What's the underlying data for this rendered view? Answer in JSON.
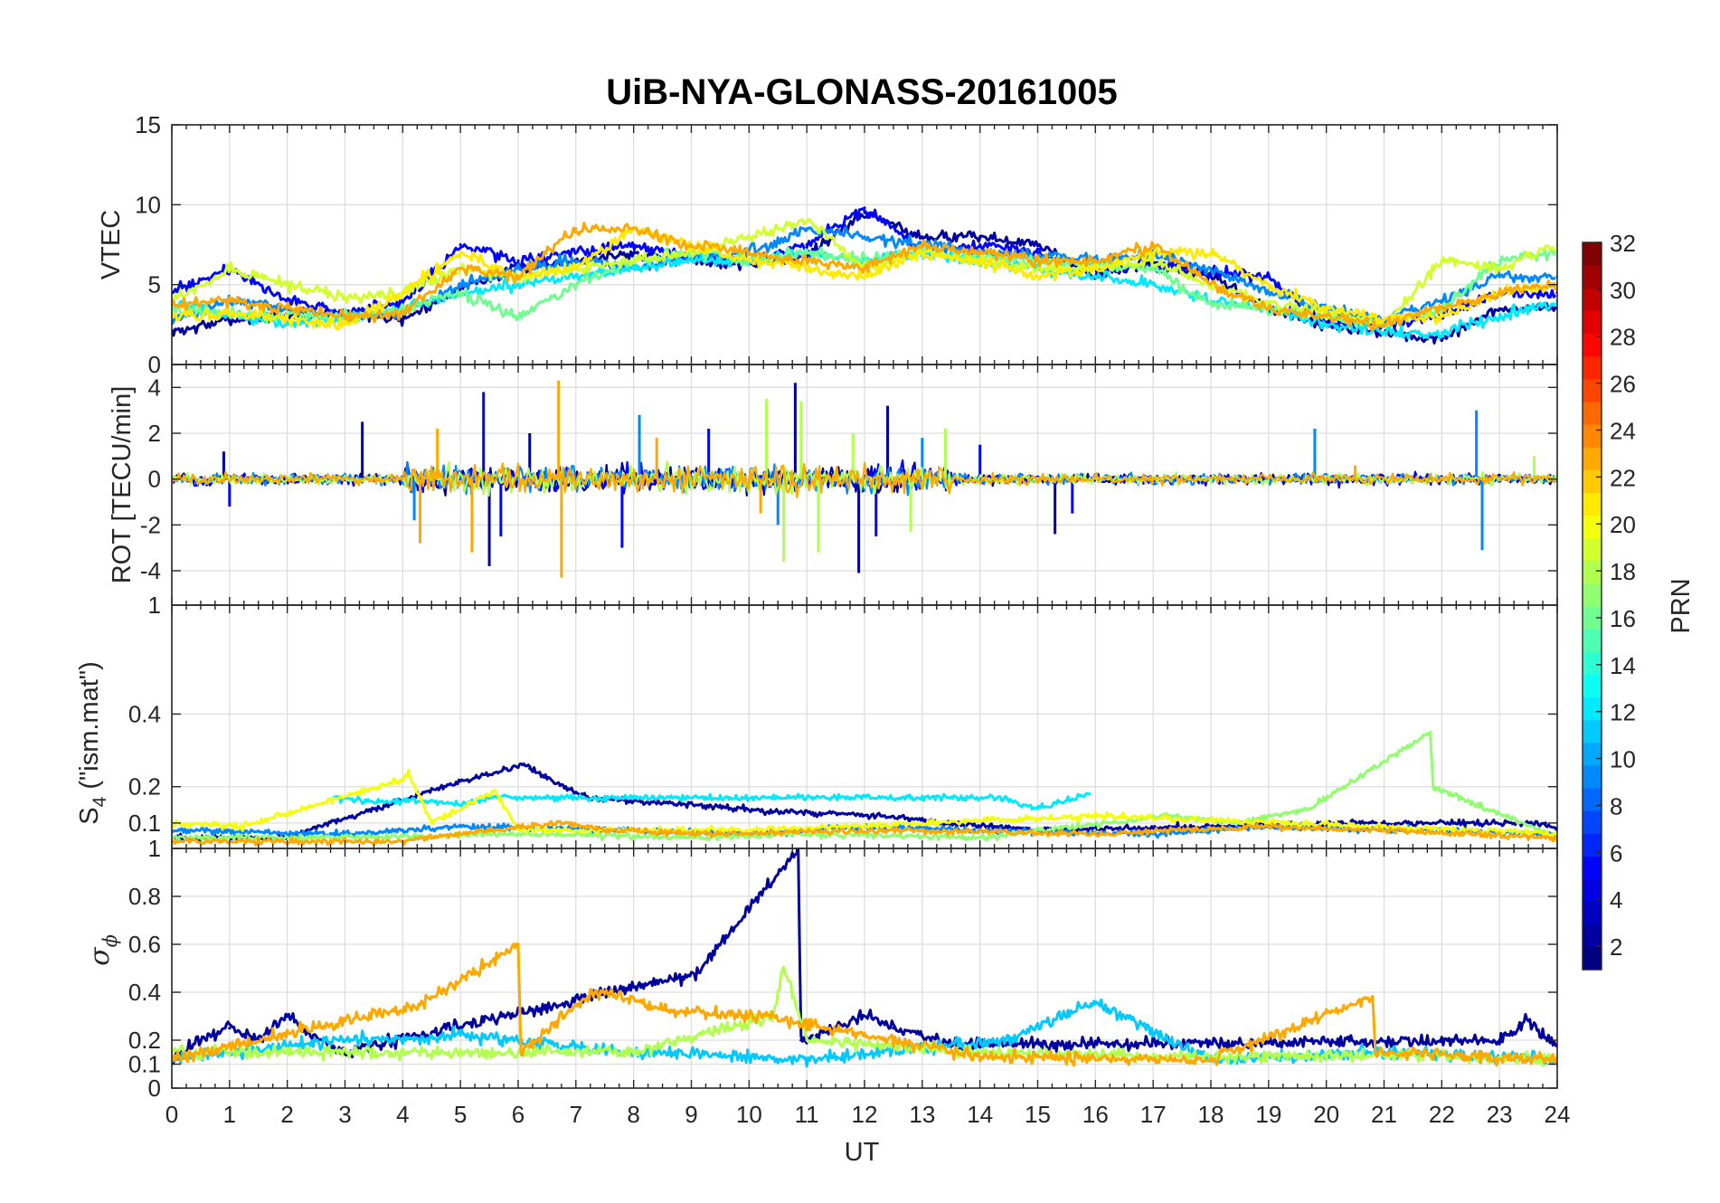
{
  "title": "UiB-NYA-GLONASS-20161005",
  "x_axis": {
    "label": "UT",
    "range": [
      0,
      24
    ],
    "ticks": [
      "0",
      "1",
      "2",
      "3",
      "4",
      "5",
      "6",
      "7",
      "8",
      "9",
      "10",
      "11",
      "12",
      "13",
      "14",
      "15",
      "16",
      "17",
      "18",
      "19",
      "20",
      "21",
      "22",
      "23",
      "24"
    ]
  },
  "colorbar": {
    "label": "PRN",
    "colormap": "jet",
    "range": [
      1,
      32
    ],
    "ticks": [
      "2",
      "4",
      "6",
      "8",
      "10",
      "12",
      "14",
      "16",
      "18",
      "20",
      "22",
      "24",
      "26",
      "28",
      "30",
      "32"
    ]
  },
  "panels": {
    "vtec": {
      "ylabel": "VTEC",
      "ticks": [
        "0",
        "5",
        "10",
        "15"
      ]
    },
    "rot": {
      "ylabel": "ROT [TECU/min]",
      "ticks": [
        "-4",
        "-2",
        "0",
        "2",
        "4"
      ]
    },
    "s4": {
      "ylabel_main": "S",
      "ylabel_sub": "4",
      "ylabel_rest": " (\"ism.mat\")",
      "ticks": [
        "0.1",
        "0.2",
        "0.4"
      ],
      "top_tick": "1"
    },
    "sigma": {
      "ylabel_main": "σ",
      "ylabel_sub": "ϕ",
      "ticks": [
        "0",
        "0.1",
        "0.2",
        "0.4",
        "0.6",
        "0.8",
        "1"
      ]
    }
  },
  "chart_data": [
    {
      "type": "line",
      "panel": "vtec",
      "ylabel": "VTEC",
      "xlim": [
        0,
        24
      ],
      "ylim": [
        0,
        15
      ],
      "grid": true,
      "series": [
        {
          "prn": 2,
          "x": [
            0,
            1,
            2,
            3,
            4,
            5,
            6,
            7,
            8,
            9,
            10,
            11,
            12,
            13,
            14,
            15,
            16,
            17,
            18,
            19,
            20,
            21,
            22,
            23,
            24
          ],
          "y": [
            2,
            2.8,
            3,
            3.3,
            2.8,
            4.8,
            6,
            6.5,
            7,
            6.5,
            6.3,
            6.8,
            9.5,
            8,
            8,
            7.5,
            5.5,
            6.5,
            5.5,
            3.5,
            2.5,
            2,
            1.5,
            3.5,
            3.5
          ]
        },
        {
          "prn": 5,
          "x": [
            0,
            1,
            2,
            3,
            4,
            5,
            6,
            7,
            8,
            9,
            10,
            11,
            12,
            13,
            14,
            15,
            16,
            17,
            18,
            19,
            20,
            21,
            22,
            23,
            24
          ],
          "y": [
            4.5,
            6,
            4,
            3.2,
            3.8,
            7.5,
            6.5,
            7,
            7.5,
            6.8,
            6.5,
            7.5,
            9.8,
            7,
            7.5,
            7,
            6,
            6.2,
            5.8,
            5.5,
            2.5,
            2.5,
            3,
            4.5,
            4.5
          ]
        },
        {
          "prn": 9,
          "x": [
            0,
            1,
            2,
            3,
            4,
            5,
            6,
            7,
            8,
            9,
            10,
            11,
            12,
            13,
            14,
            15,
            16,
            17,
            18,
            19,
            20,
            21,
            22,
            23,
            24
          ],
          "y": [
            2.8,
            4,
            3.5,
            3,
            3.2,
            5,
            6,
            6.5,
            6,
            6.8,
            7,
            8.5,
            8,
            7.5,
            7,
            6.8,
            6.5,
            6.8,
            6,
            4.5,
            3.5,
            2.8,
            4,
            5.5,
            5.5
          ]
        },
        {
          "prn": 12,
          "x": [
            0,
            1,
            2,
            3,
            4,
            5,
            6,
            7,
            8,
            9,
            10,
            11,
            12,
            13,
            14,
            15,
            16,
            17,
            18,
            19,
            20,
            21,
            22,
            23,
            24
          ],
          "y": [
            4,
            3,
            2.5,
            3,
            3.5,
            4.5,
            5,
            5.5,
            6,
            6.5,
            6.5,
            7,
            6.5,
            7,
            6.5,
            6,
            5.5,
            5,
            4,
            3.5,
            2.5,
            2,
            2,
            3,
            4
          ]
        },
        {
          "prn": 16,
          "x": [
            0,
            1,
            2,
            3,
            4,
            5,
            6,
            7,
            8,
            9,
            10,
            11,
            12,
            13,
            14,
            15,
            16,
            17,
            18,
            19,
            20,
            21,
            22,
            23,
            24
          ],
          "y": [
            3.5,
            3.2,
            3,
            3,
            3.5,
            4.5,
            3,
            5,
            6.5,
            7,
            6.5,
            7,
            6.5,
            7,
            6.8,
            6.5,
            6.2,
            6,
            3.8,
            3.5,
            3,
            2.5,
            3.5,
            6.5,
            7
          ]
        },
        {
          "prn": 19,
          "x": [
            0,
            1,
            2,
            3,
            4,
            5,
            6,
            7,
            8,
            9,
            10,
            11,
            12,
            13,
            14,
            15,
            16,
            17,
            18,
            19,
            20,
            21,
            22,
            23,
            24
          ],
          "y": [
            4,
            6,
            5,
            4.2,
            4.5,
            6,
            5.5,
            6,
            6.5,
            7,
            8,
            9,
            6,
            7,
            6.5,
            6,
            6,
            6.5,
            5,
            3.8,
            3.2,
            2.5,
            6.5,
            6,
            7.5
          ]
        },
        {
          "prn": 21,
          "x": [
            0,
            1,
            2,
            3,
            4,
            5,
            6,
            7,
            8,
            9,
            10,
            11,
            12,
            13,
            14,
            15,
            16,
            17,
            18,
            19,
            20,
            21,
            22,
            23,
            24
          ],
          "y": [
            3,
            3.2,
            2.8,
            2.5,
            4.5,
            7,
            5.5,
            6,
            8.5,
            7.5,
            6.5,
            6,
            5.5,
            7,
            6.5,
            5.5,
            6,
            7,
            7,
            5,
            3.5,
            2.8,
            3,
            4.5,
            5
          ]
        },
        {
          "prn": 23,
          "x": [
            0,
            1,
            2,
            3,
            4,
            5,
            6,
            7,
            8,
            9,
            10,
            11,
            12,
            13,
            14,
            15,
            16,
            17,
            18,
            19,
            20,
            21,
            22,
            23,
            24
          ],
          "y": [
            3.8,
            4,
            3.5,
            3,
            3.2,
            6,
            5.5,
            8.5,
            8.5,
            7.5,
            7,
            6.5,
            6,
            7.5,
            7,
            6.5,
            6.5,
            7.5,
            5,
            3.5,
            3,
            2.5,
            3.5,
            4.5,
            5
          ]
        }
      ]
    },
    {
      "type": "line",
      "panel": "rot",
      "ylabel": "ROT [TECU/min]",
      "xlim": [
        0,
        24
      ],
      "ylim": [
        -5.5,
        5
      ],
      "grid": true,
      "series": [
        {
          "prn": 2,
          "x": [
            0.9,
            3.3,
            5.5,
            6.2,
            10.8,
            11.9,
            12.4,
            15.3
          ],
          "y": [
            1.2,
            2.5,
            -3.8,
            2.0,
            4.2,
            -4.1,
            3.2,
            -2.4
          ]
        },
        {
          "prn": 5,
          "x": [
            1.0,
            5.4,
            5.7,
            7.8,
            9.3,
            12.2,
            14.0,
            15.6
          ],
          "y": [
            -1.2,
            3.8,
            -2.5,
            -3.0,
            2.2,
            -2.5,
            1.5,
            -1.5
          ]
        },
        {
          "prn": 9,
          "x": [
            4.2,
            8.1,
            10.5,
            13.0,
            19.8,
            22.6,
            22.7
          ],
          "y": [
            -1.8,
            2.8,
            -2.0,
            1.8,
            2.2,
            3.0,
            -3.1
          ]
        },
        {
          "prn": 18,
          "x": [
            10.3,
            10.6,
            10.9,
            11.2,
            11.8,
            12.8,
            13.4,
            23.6
          ],
          "y": [
            3.5,
            -3.6,
            3.4,
            -3.2,
            2.0,
            -2.3,
            2.2,
            1.0
          ]
        },
        {
          "prn": 23,
          "x": [
            4.3,
            4.6,
            5.2,
            6.7,
            6.75,
            8.4,
            10.2,
            20.5
          ],
          "y": [
            -2.8,
            2.2,
            -3.2,
            4.3,
            -4.3,
            1.8,
            -1.5,
            0.6
          ]
        }
      ]
    },
    {
      "type": "line",
      "panel": "s4",
      "ylabel": "S4 (\"ism.mat\")",
      "xlim": [
        0,
        24
      ],
      "ylim": [
        0.03,
        0.7
      ],
      "grid": true,
      "series": [
        {
          "prn": 2,
          "x": [
            0,
            2,
            4.7,
            6.1,
            6.2,
            7.2,
            10.7,
            12.3,
            13.3,
            15.1,
            20.6,
            23.8,
            24
          ],
          "y": [
            0.06,
            0.06,
            0.2,
            0.26,
            0.25,
            0.17,
            0.13,
            0.12,
            0.1,
            0.08,
            0.1,
            0.1,
            0.08
          ]
        },
        {
          "prn": 9,
          "x": [
            0,
            3,
            5,
            8,
            10,
            12,
            14,
            17,
            19,
            21,
            22,
            24
          ],
          "y": [
            0.08,
            0.07,
            0.09,
            0.08,
            0.07,
            0.09,
            0.08,
            0.07,
            0.09,
            0.08,
            0.08,
            0.07
          ]
        },
        {
          "prn": 12,
          "x": [
            2.8,
            3.4,
            4.3,
            5.0,
            5.5,
            14.3,
            15.0,
            15.9
          ],
          "y": [
            0.17,
            0.16,
            0.16,
            0.15,
            0.17,
            0.17,
            0.14,
            0.18
          ]
        },
        {
          "prn": 17,
          "x": [
            0,
            3,
            6,
            9,
            11,
            14,
            17.3,
            18.5,
            19.7,
            21.8,
            21.85,
            24
          ],
          "y": [
            0.06,
            0.06,
            0.07,
            0.06,
            0.07,
            0.06,
            0.12,
            0.1,
            0.14,
            0.35,
            0.2,
            0.06
          ]
        },
        {
          "prn": 20,
          "x": [
            0,
            1.2,
            4.0,
            4.1,
            4.5,
            5.6,
            6.0,
            10.0,
            16.2,
            24
          ],
          "y": [
            0.1,
            0.09,
            0.22,
            0.24,
            0.1,
            0.19,
            0.08,
            0.08,
            0.12,
            0.07
          ]
        },
        {
          "prn": 23,
          "x": [
            0,
            4,
            5.5,
            6.8,
            7.5,
            9.5,
            12.5,
            16,
            19,
            21,
            24
          ],
          "y": [
            0.05,
            0.05,
            0.08,
            0.1,
            0.08,
            0.07,
            0.08,
            0.07,
            0.09,
            0.08,
            0.06
          ]
        }
      ]
    },
    {
      "type": "line",
      "panel": "sigma",
      "ylabel": "σϕ",
      "xlim": [
        0,
        24
      ],
      "ylim": [
        0,
        1
      ],
      "grid": true,
      "series": [
        {
          "prn": 2,
          "x": [
            0,
            0.5,
            1,
            1.5,
            2,
            2.5,
            3,
            9.1,
            10.85,
            10.9,
            11.5,
            12,
            12.5,
            13,
            13.5,
            23,
            23.5,
            24
          ],
          "y": [
            0.12,
            0.2,
            0.25,
            0.2,
            0.3,
            0.2,
            0.15,
            0.48,
            1.0,
            0.2,
            0.25,
            0.3,
            0.25,
            0.22,
            0.18,
            0.2,
            0.28,
            0.18
          ]
        },
        {
          "prn": 11,
          "x": [
            0,
            3,
            4,
            5,
            8,
            11,
            14.5,
            16.0,
            18,
            21,
            24
          ],
          "y": [
            0.12,
            0.2,
            0.2,
            0.22,
            0.15,
            0.12,
            0.2,
            0.36,
            0.12,
            0.15,
            0.12
          ]
        },
        {
          "prn": 18,
          "x": [
            0,
            4,
            8,
            10.4,
            10.6,
            10.8,
            11,
            14,
            18,
            21,
            24
          ],
          "y": [
            0.15,
            0.15,
            0.15,
            0.3,
            0.5,
            0.35,
            0.2,
            0.15,
            0.13,
            0.14,
            0.12
          ]
        },
        {
          "prn": 23,
          "x": [
            0,
            4.3,
            6.0,
            6.05,
            7.2,
            7.5,
            8.7,
            10.2,
            14,
            18,
            20.8,
            20.85,
            24
          ],
          "y": [
            0.12,
            0.35,
            0.6,
            0.15,
            0.38,
            0.4,
            0.32,
            0.3,
            0.13,
            0.12,
            0.38,
            0.15,
            0.12
          ]
        }
      ]
    }
  ]
}
